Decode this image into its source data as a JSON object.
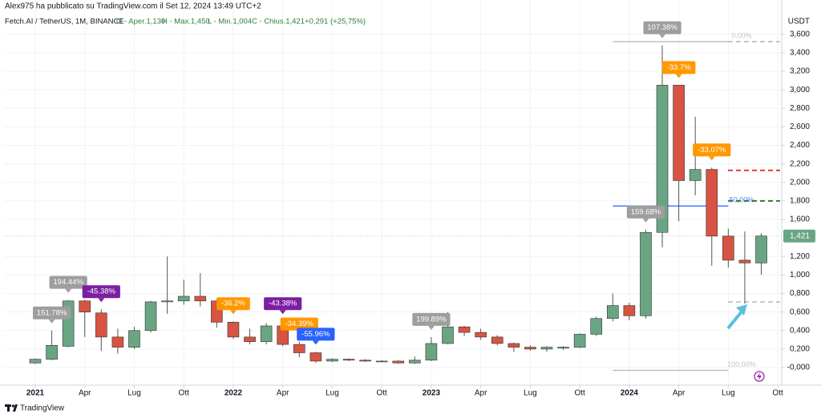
{
  "header": {
    "publisher": "Alex975 ha pubblicato su TradingView.com il Set 12, 2024 13:49 UTC+2",
    "symbol": "Fetch.AI / TetherUS, 1M, BINANCE",
    "ohlc": [
      "O - Aper.1,130",
      "H - Max.1,450",
      "L - Min.1,004",
      "C - Chius.1,421"
    ],
    "change": "+0,291 (+25,75%)"
  },
  "footer": {
    "brand": "TradingView"
  },
  "chart_data": {
    "type": "candlestick",
    "y_unit": "USDT",
    "x": [
      "2021-01",
      "2021-02",
      "2021-03",
      "2021-04",
      "2021-05",
      "2021-06",
      "2021-07",
      "2021-08",
      "2021-09",
      "2021-10",
      "2021-11",
      "2021-12",
      "2022-01",
      "2022-02",
      "2022-03",
      "2022-04",
      "2022-05",
      "2022-06",
      "2022-07",
      "2022-08",
      "2022-09",
      "2022-10",
      "2022-11",
      "2022-12",
      "2023-01",
      "2023-02",
      "2023-03",
      "2023-04",
      "2023-05",
      "2023-06",
      "2023-07",
      "2023-08",
      "2023-09",
      "2023-10",
      "2023-11",
      "2023-12",
      "2024-01",
      "2024-02",
      "2024-03",
      "2024-04",
      "2024-05",
      "2024-06",
      "2024-07",
      "2024-08",
      "2024-09"
    ],
    "open": [
      0.05,
      0.09,
      0.23,
      0.72,
      0.59,
      0.33,
      0.22,
      0.4,
      0.71,
      0.72,
      0.77,
      0.72,
      0.49,
      0.33,
      0.28,
      0.45,
      0.25,
      0.16,
      0.07,
      0.09,
      0.08,
      0.07,
      0.07,
      0.05,
      0.08,
      0.26,
      0.44,
      0.38,
      0.33,
      0.26,
      0.22,
      0.2,
      0.21,
      0.22,
      0.36,
      0.53,
      0.67,
      0.56,
      1.46,
      3.05,
      2.02,
      2.14,
      1.42,
      1.16,
      1.13
    ],
    "high": [
      0.1,
      0.4,
      0.73,
      0.73,
      0.63,
      0.42,
      0.44,
      0.72,
      1.2,
      0.95,
      1.02,
      0.74,
      0.5,
      0.42,
      0.48,
      0.5,
      0.28,
      0.17,
      0.1,
      0.1,
      0.09,
      0.08,
      0.08,
      0.12,
      0.33,
      0.6,
      0.45,
      0.42,
      0.35,
      0.27,
      0.24,
      0.23,
      0.23,
      0.37,
      0.55,
      0.8,
      0.7,
      1.49,
      3.48,
      3.05,
      2.71,
      2.16,
      1.5,
      1.47,
      1.45
    ],
    "low": [
      0.04,
      0.08,
      0.22,
      0.33,
      0.18,
      0.15,
      0.2,
      0.38,
      0.58,
      0.68,
      0.66,
      0.43,
      0.31,
      0.25,
      0.25,
      0.23,
      0.11,
      0.05,
      0.06,
      0.07,
      0.06,
      0.06,
      0.04,
      0.04,
      0.07,
      0.25,
      0.34,
      0.3,
      0.24,
      0.17,
      0.18,
      0.17,
      0.19,
      0.21,
      0.34,
      0.5,
      0.51,
      0.53,
      1.3,
      1.58,
      1.86,
      1.1,
      1.08,
      0.69,
      1.004
    ],
    "close": [
      0.09,
      0.24,
      0.72,
      0.6,
      0.33,
      0.22,
      0.4,
      0.71,
      0.72,
      0.77,
      0.72,
      0.49,
      0.33,
      0.28,
      0.45,
      0.25,
      0.16,
      0.07,
      0.09,
      0.08,
      0.07,
      0.07,
      0.05,
      0.08,
      0.26,
      0.44,
      0.38,
      0.33,
      0.26,
      0.22,
      0.2,
      0.22,
      0.22,
      0.36,
      0.53,
      0.67,
      0.56,
      1.46,
      3.05,
      2.02,
      2.14,
      1.42,
      1.16,
      1.13,
      1.421
    ],
    "up_color": "#6aa583",
    "down_color": "#d75442",
    "ylim": [
      -0.19,
      3.97
    ],
    "yticks": [
      {
        "value": 3.6,
        "label": "3,600"
      },
      {
        "value": 3.4,
        "label": "3,400"
      },
      {
        "value": 3.2,
        "label": "3,200"
      },
      {
        "value": 3.0,
        "label": "3,000"
      },
      {
        "value": 2.8,
        "label": "2,800"
      },
      {
        "value": 2.6,
        "label": "2,600"
      },
      {
        "value": 2.4,
        "label": "2,400"
      },
      {
        "value": 2.2,
        "label": "2,200"
      },
      {
        "value": 2.0,
        "label": "2,000"
      },
      {
        "value": 1.8,
        "label": "1,800"
      },
      {
        "value": 1.6,
        "label": "1,600"
      },
      {
        "value": 1.2,
        "label": "1,200"
      },
      {
        "value": 1.0,
        "label": "1,000"
      },
      {
        "value": 0.8,
        "label": "0,800"
      },
      {
        "value": 0.6,
        "label": "0,600"
      },
      {
        "value": 0.4,
        "label": "0,400"
      },
      {
        "value": 0.2,
        "label": "0,200"
      },
      {
        "value": 0,
        "label": "-0,000"
      }
    ],
    "xticks": [
      {
        "value": "2021-01",
        "label": "2021"
      },
      {
        "value": "2021-04",
        "label": "Apr"
      },
      {
        "value": "2021-07",
        "label": "Lug"
      },
      {
        "value": "2021-10",
        "label": "Ott"
      },
      {
        "value": "2022-01",
        "label": "2022"
      },
      {
        "value": "2022-04",
        "label": "Apr"
      },
      {
        "value": "2022-07",
        "label": "Lug"
      },
      {
        "value": "2022-10",
        "label": "Ott"
      },
      {
        "value": "2023-01",
        "label": "2023"
      },
      {
        "value": "2023-04",
        "label": "Apr"
      },
      {
        "value": "2023-07",
        "label": "Lug"
      },
      {
        "value": "2023-10",
        "label": "Ott"
      },
      {
        "value": "2024-01",
        "label": "2024"
      },
      {
        "value": "2024-04",
        "label": "Apr"
      },
      {
        "value": "2024-07",
        "label": "Lug"
      },
      {
        "value": "2024-10",
        "label": "Ott"
      }
    ],
    "grid": true,
    "last_price": {
      "value": 1.421,
      "label": "1,421"
    },
    "fib_levels": [
      {
        "label": "0,00%",
        "value": 3.52,
        "color": "#b2b5be"
      },
      {
        "label": "50,00%",
        "value": 1.745,
        "color": "#2962ff"
      },
      {
        "label": "100,00%",
        "value": -0.03,
        "color": "#b2b5be"
      }
    ],
    "dashed_levels": [
      {
        "value": 3.52,
        "color": "#c8c8c8"
      },
      {
        "value": 2.13,
        "color": "#e53935"
      },
      {
        "value": 1.8,
        "color": "#2e7d32"
      },
      {
        "value": 0.71,
        "color": "#c8c8c8"
      }
    ],
    "annotations": [
      {
        "text": "151.78%",
        "at": "2021-02",
        "color": "#9e9e9e"
      },
      {
        "text": "194.44%",
        "at": "2021-03",
        "color": "#9e9e9e"
      },
      {
        "text": "-45.38%",
        "at": "2021-05",
        "color": "#7b1fa2"
      },
      {
        "text": "-36.2%",
        "at": "2022-01",
        "color": "#ff9800"
      },
      {
        "text": "-43.38%",
        "at": "2022-04",
        "color": "#7b1fa2"
      },
      {
        "text": "-34.39%",
        "at": "2022-05",
        "color": "#ff9800"
      },
      {
        "text": "-55.96%",
        "at": "2022-06",
        "color": "#2962ff"
      },
      {
        "text": "199.89%",
        "at": "2023-01",
        "color": "#9e9e9e"
      },
      {
        "text": "159.68%",
        "at": "2024-02",
        "color": "#9e9e9e"
      },
      {
        "text": "107.38%",
        "at": "2024-03",
        "color": "#9e9e9e"
      },
      {
        "text": "-33.7%",
        "at": "2024-04",
        "color": "#ff9800"
      },
      {
        "text": "-33.07%",
        "at": "2024-06",
        "color": "#ff9800"
      }
    ]
  }
}
